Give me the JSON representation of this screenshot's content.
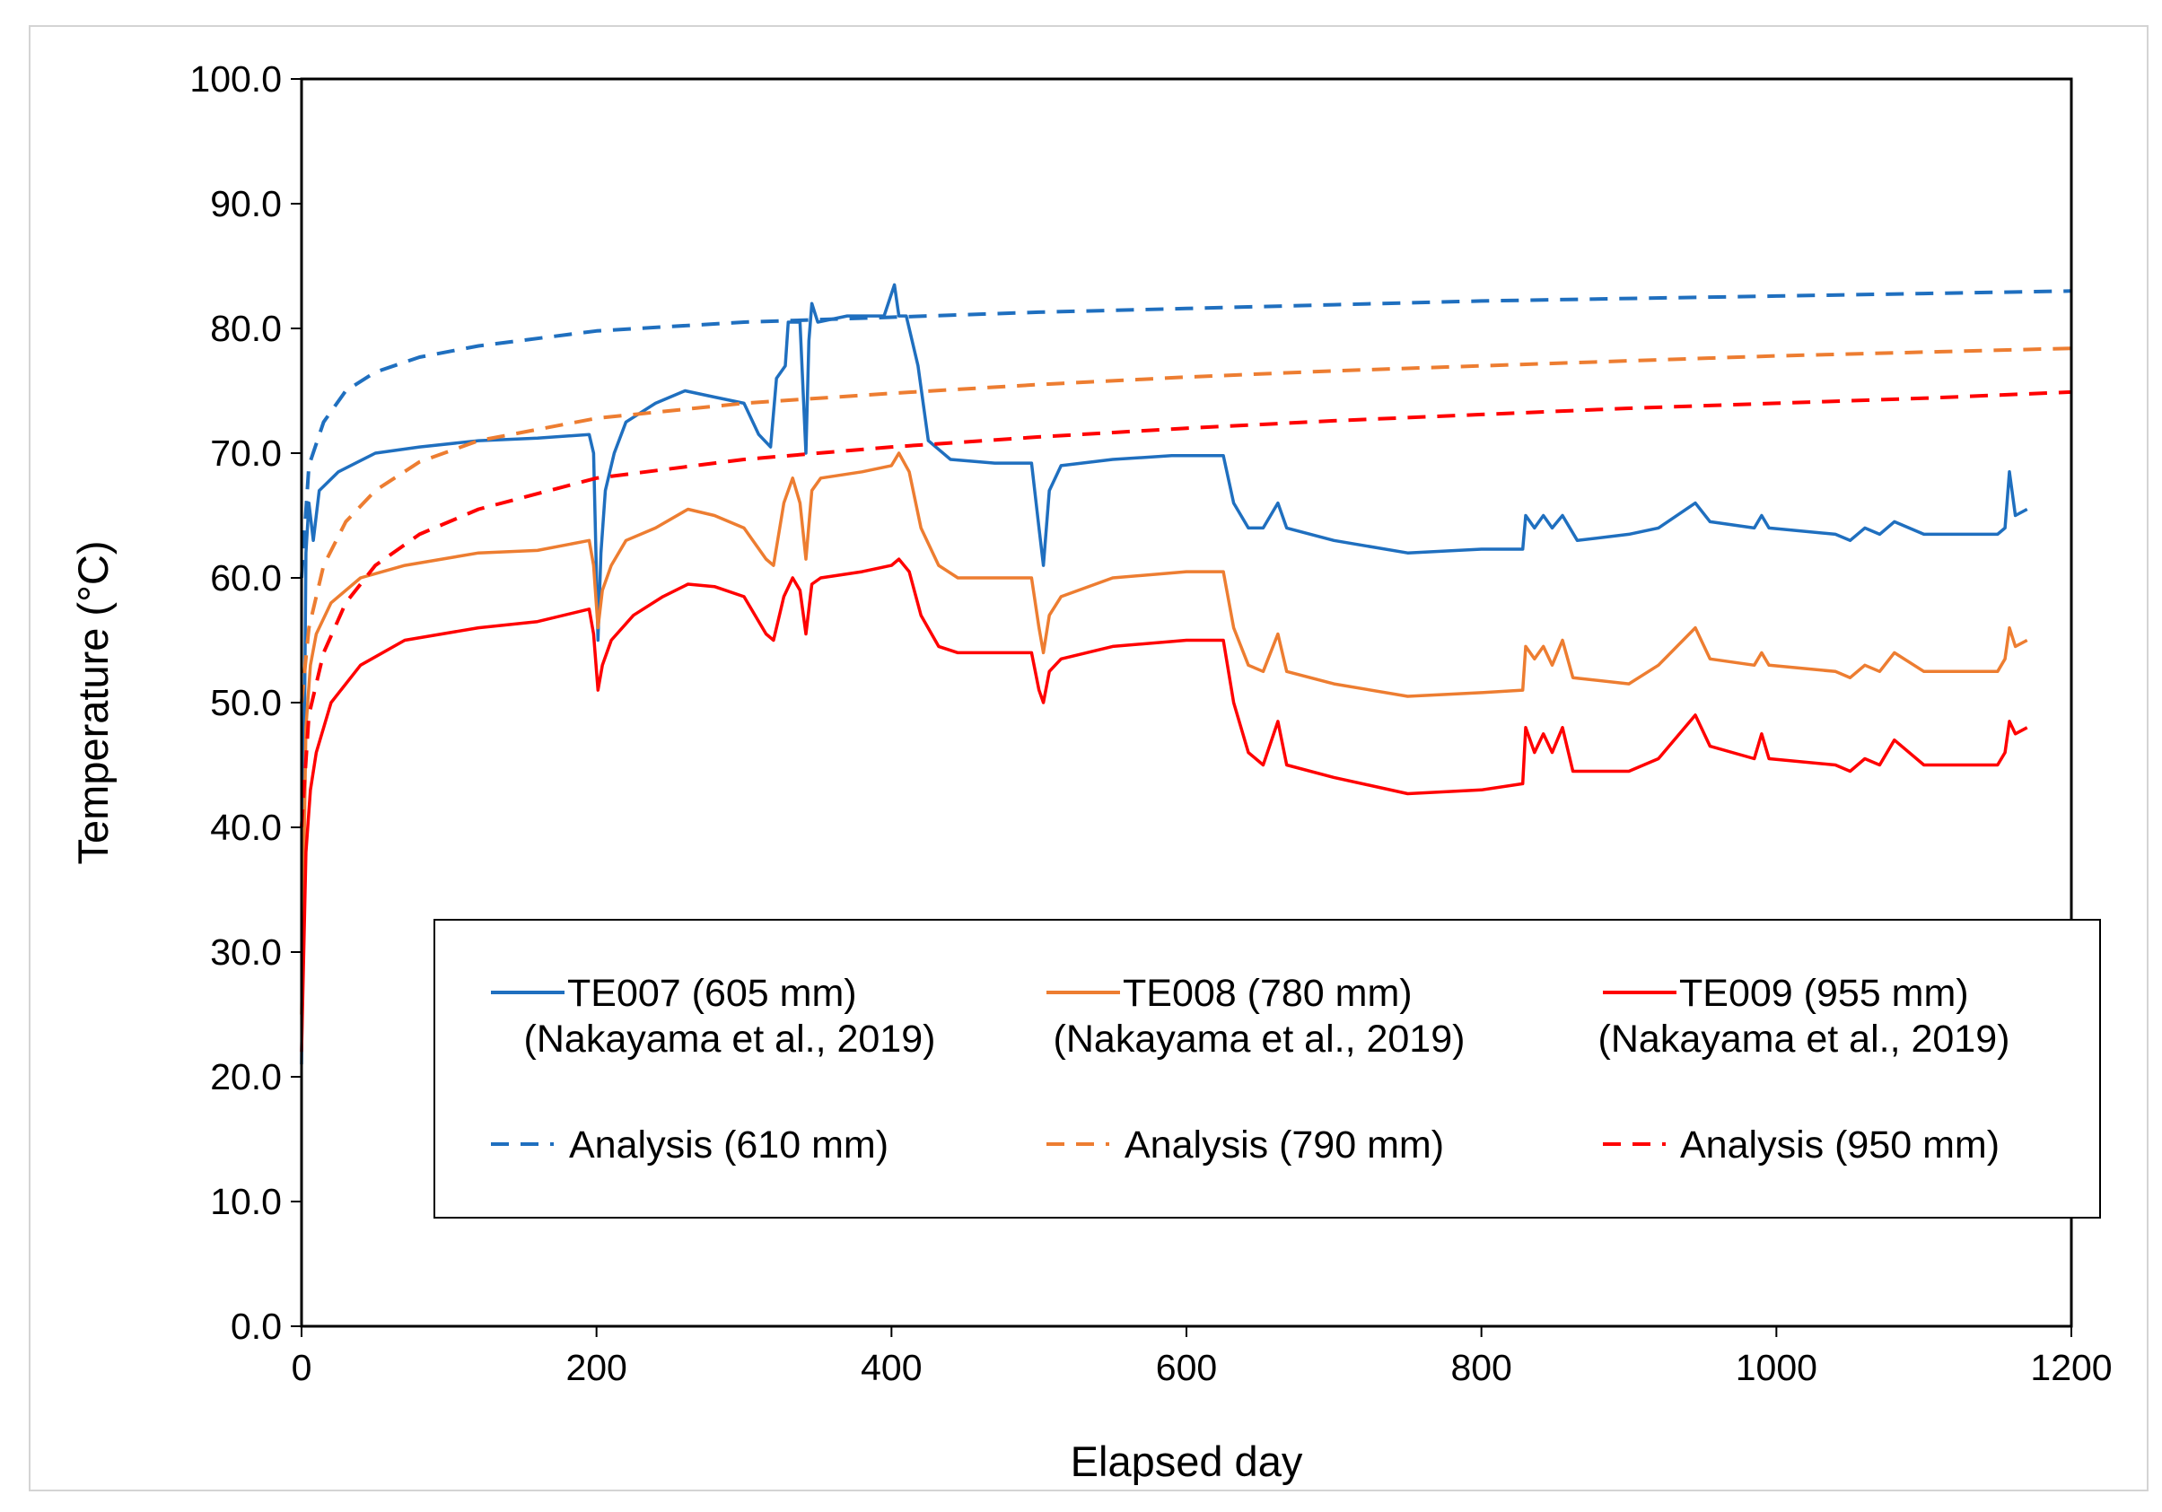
{
  "chart_data": {
    "type": "line",
    "title": "",
    "xlabel": "Elapsed day",
    "ylabel": "Temperature (°C)",
    "xlim": [
      0,
      1200
    ],
    "ylim": [
      0,
      100
    ],
    "x_ticks": [
      "0",
      "200",
      "400",
      "600",
      "800",
      "1000",
      "1200"
    ],
    "y_ticks": [
      "0.0",
      "10.0",
      "20.0",
      "30.0",
      "40.0",
      "50.0",
      "60.0",
      "70.0",
      "80.0",
      "90.0",
      "100.0"
    ],
    "grid": false,
    "legend_position": "lower-center",
    "series": [
      {
        "name": "TE007 (605 mm)",
        "source": "(Nakayama et al., 2019)",
        "color": "#1f6fbf",
        "style": "solid",
        "points": [
          [
            0,
            21
          ],
          [
            3,
            62
          ],
          [
            5,
            66
          ],
          [
            8,
            63
          ],
          [
            12,
            67
          ],
          [
            25,
            68.5
          ],
          [
            50,
            70
          ],
          [
            80,
            70.5
          ],
          [
            120,
            71
          ],
          [
            160,
            71.2
          ],
          [
            195,
            71.5
          ],
          [
            198,
            70
          ],
          [
            201,
            55
          ],
          [
            203,
            62
          ],
          [
            206,
            67
          ],
          [
            212,
            70
          ],
          [
            220,
            72.5
          ],
          [
            240,
            74
          ],
          [
            260,
            75
          ],
          [
            280,
            74.5
          ],
          [
            300,
            74
          ],
          [
            310,
            71.5
          ],
          [
            318,
            70.5
          ],
          [
            322,
            76
          ],
          [
            328,
            77
          ],
          [
            330,
            80.5
          ],
          [
            338,
            80.5
          ],
          [
            342,
            70
          ],
          [
            344,
            79
          ],
          [
            346,
            82
          ],
          [
            350,
            80.5
          ],
          [
            370,
            81
          ],
          [
            395,
            81
          ],
          [
            402,
            83.5
          ],
          [
            405,
            81
          ],
          [
            410,
            81
          ],
          [
            418,
            77
          ],
          [
            425,
            71
          ],
          [
            440,
            69.5
          ],
          [
            470,
            69.2
          ],
          [
            495,
            69.2
          ],
          [
            500,
            64
          ],
          [
            503,
            61
          ],
          [
            507,
            67
          ],
          [
            515,
            69
          ],
          [
            550,
            69.5
          ],
          [
            590,
            69.8
          ],
          [
            625,
            69.8
          ],
          [
            632,
            66
          ],
          [
            642,
            64
          ],
          [
            652,
            64
          ],
          [
            662,
            66
          ],
          [
            668,
            64
          ],
          [
            700,
            63
          ],
          [
            750,
            62
          ],
          [
            800,
            62.3
          ],
          [
            828,
            62.3
          ],
          [
            830,
            65
          ],
          [
            836,
            64
          ],
          [
            842,
            65
          ],
          [
            848,
            64
          ],
          [
            855,
            65
          ],
          [
            865,
            63
          ],
          [
            900,
            63.5
          ],
          [
            920,
            64
          ],
          [
            945,
            66
          ],
          [
            955,
            64.5
          ],
          [
            985,
            64
          ],
          [
            990,
            65
          ],
          [
            995,
            64
          ],
          [
            1040,
            63.5
          ],
          [
            1050,
            63
          ],
          [
            1060,
            64
          ],
          [
            1070,
            63.5
          ],
          [
            1080,
            64.5
          ],
          [
            1100,
            63.5
          ],
          [
            1150,
            63.5
          ],
          [
            1155,
            64
          ],
          [
            1158,
            68.5
          ],
          [
            1162,
            65
          ],
          [
            1170,
            65.5
          ]
        ]
      },
      {
        "name": "TE008 (780 mm)",
        "source": "(Nakayama et al., 2019)",
        "color": "#ed7d31",
        "style": "solid",
        "points": [
          [
            0,
            25
          ],
          [
            3,
            48
          ],
          [
            6,
            53
          ],
          [
            10,
            55.5
          ],
          [
            20,
            58
          ],
          [
            40,
            60
          ],
          [
            70,
            61
          ],
          [
            120,
            62
          ],
          [
            160,
            62.2
          ],
          [
            195,
            63
          ],
          [
            198,
            61
          ],
          [
            201,
            56
          ],
          [
            204,
            59
          ],
          [
            210,
            61
          ],
          [
            220,
            63
          ],
          [
            240,
            64
          ],
          [
            262,
            65.5
          ],
          [
            280,
            65
          ],
          [
            300,
            64
          ],
          [
            315,
            61.5
          ],
          [
            320,
            61
          ],
          [
            327,
            66
          ],
          [
            333,
            68
          ],
          [
            338,
            66
          ],
          [
            342,
            61.5
          ],
          [
            346,
            67
          ],
          [
            352,
            68
          ],
          [
            380,
            68.5
          ],
          [
            400,
            69
          ],
          [
            405,
            70
          ],
          [
            412,
            68.5
          ],
          [
            420,
            64
          ],
          [
            432,
            61
          ],
          [
            445,
            60
          ],
          [
            495,
            60
          ],
          [
            500,
            56
          ],
          [
            503,
            54
          ],
          [
            507,
            57
          ],
          [
            515,
            58.5
          ],
          [
            550,
            60
          ],
          [
            600,
            60.5
          ],
          [
            625,
            60.5
          ],
          [
            632,
            56
          ],
          [
            642,
            53
          ],
          [
            652,
            52.5
          ],
          [
            662,
            55.5
          ],
          [
            668,
            52.5
          ],
          [
            700,
            51.5
          ],
          [
            750,
            50.5
          ],
          [
            800,
            50.8
          ],
          [
            828,
            51
          ],
          [
            830,
            54.5
          ],
          [
            836,
            53.5
          ],
          [
            842,
            54.5
          ],
          [
            848,
            53
          ],
          [
            855,
            55
          ],
          [
            862,
            52
          ],
          [
            900,
            51.5
          ],
          [
            920,
            53
          ],
          [
            945,
            56
          ],
          [
            955,
            53.5
          ],
          [
            985,
            53
          ],
          [
            990,
            54
          ],
          [
            995,
            53
          ],
          [
            1040,
            52.5
          ],
          [
            1050,
            52
          ],
          [
            1060,
            53
          ],
          [
            1070,
            52.5
          ],
          [
            1080,
            54
          ],
          [
            1100,
            52.5
          ],
          [
            1150,
            52.5
          ],
          [
            1155,
            53.5
          ],
          [
            1158,
            56
          ],
          [
            1162,
            54.5
          ],
          [
            1170,
            55
          ]
        ]
      },
      {
        "name": "TE009 (955 mm)",
        "source": "(Nakayama et al., 2019)",
        "color": "#ff0000",
        "style": "solid",
        "points": [
          [
            0,
            22
          ],
          [
            3,
            38
          ],
          [
            6,
            43
          ],
          [
            10,
            46
          ],
          [
            20,
            50
          ],
          [
            40,
            53
          ],
          [
            70,
            55
          ],
          [
            120,
            56
          ],
          [
            160,
            56.5
          ],
          [
            195,
            57.5
          ],
          [
            198,
            55.5
          ],
          [
            201,
            51
          ],
          [
            204,
            53
          ],
          [
            210,
            55
          ],
          [
            225,
            57
          ],
          [
            245,
            58.5
          ],
          [
            262,
            59.5
          ],
          [
            280,
            59.3
          ],
          [
            300,
            58.5
          ],
          [
            315,
            55.5
          ],
          [
            320,
            55
          ],
          [
            327,
            58.5
          ],
          [
            333,
            60
          ],
          [
            338,
            59
          ],
          [
            342,
            55.5
          ],
          [
            346,
            59.5
          ],
          [
            352,
            60
          ],
          [
            380,
            60.5
          ],
          [
            400,
            61
          ],
          [
            405,
            61.5
          ],
          [
            412,
            60.5
          ],
          [
            420,
            57
          ],
          [
            432,
            54.5
          ],
          [
            445,
            54
          ],
          [
            495,
            54
          ],
          [
            500,
            51
          ],
          [
            503,
            50
          ],
          [
            507,
            52.5
          ],
          [
            515,
            53.5
          ],
          [
            550,
            54.5
          ],
          [
            600,
            55
          ],
          [
            625,
            55
          ],
          [
            632,
            50
          ],
          [
            642,
            46
          ],
          [
            652,
            45
          ],
          [
            662,
            48.5
          ],
          [
            668,
            45
          ],
          [
            700,
            44
          ],
          [
            750,
            42.7
          ],
          [
            800,
            43
          ],
          [
            828,
            43.5
          ],
          [
            830,
            48
          ],
          [
            836,
            46
          ],
          [
            842,
            47.5
          ],
          [
            848,
            46
          ],
          [
            855,
            48
          ],
          [
            862,
            44.5
          ],
          [
            900,
            44.5
          ],
          [
            920,
            45.5
          ],
          [
            945,
            49
          ],
          [
            955,
            46.5
          ],
          [
            985,
            45.5
          ],
          [
            990,
            47.5
          ],
          [
            995,
            45.5
          ],
          [
            1040,
            45
          ],
          [
            1050,
            44.5
          ],
          [
            1060,
            45.5
          ],
          [
            1070,
            45
          ],
          [
            1080,
            47
          ],
          [
            1100,
            45
          ],
          [
            1150,
            45
          ],
          [
            1155,
            46
          ],
          [
            1158,
            48.5
          ],
          [
            1162,
            47.5
          ],
          [
            1170,
            48
          ]
        ]
      },
      {
        "name": "Analysis (610 mm)",
        "color": "#1f6fbf",
        "style": "dashed",
        "points": [
          [
            0,
            60
          ],
          [
            5,
            69
          ],
          [
            15,
            72.5
          ],
          [
            30,
            75
          ],
          [
            50,
            76.5
          ],
          [
            80,
            77.7
          ],
          [
            120,
            78.6
          ],
          [
            200,
            79.8
          ],
          [
            300,
            80.5
          ],
          [
            400,
            80.9
          ],
          [
            500,
            81.3
          ],
          [
            600,
            81.6
          ],
          [
            700,
            81.9
          ],
          [
            800,
            82.2
          ],
          [
            900,
            82.4
          ],
          [
            1000,
            82.6
          ],
          [
            1100,
            82.8
          ],
          [
            1200,
            83
          ]
        ]
      },
      {
        "name": "Analysis (790 mm)",
        "color": "#ed7d31",
        "style": "dashed",
        "points": [
          [
            0,
            50
          ],
          [
            5,
            56
          ],
          [
            15,
            61
          ],
          [
            30,
            64.5
          ],
          [
            50,
            67
          ],
          [
            80,
            69.3
          ],
          [
            120,
            71
          ],
          [
            200,
            72.8
          ],
          [
            300,
            74
          ],
          [
            400,
            74.8
          ],
          [
            500,
            75.5
          ],
          [
            600,
            76.1
          ],
          [
            700,
            76.6
          ],
          [
            800,
            77
          ],
          [
            900,
            77.4
          ],
          [
            1000,
            77.8
          ],
          [
            1100,
            78.1
          ],
          [
            1200,
            78.4
          ]
        ]
      },
      {
        "name": "Analysis (950 mm)",
        "color": "#ff0000",
        "style": "dashed",
        "points": [
          [
            0,
            40
          ],
          [
            5,
            49
          ],
          [
            15,
            54
          ],
          [
            30,
            58
          ],
          [
            50,
            61
          ],
          [
            80,
            63.5
          ],
          [
            120,
            65.5
          ],
          [
            200,
            68
          ],
          [
            300,
            69.5
          ],
          [
            400,
            70.5
          ],
          [
            500,
            71.3
          ],
          [
            600,
            72
          ],
          [
            700,
            72.6
          ],
          [
            800,
            73.1
          ],
          [
            900,
            73.6
          ],
          [
            1000,
            74
          ],
          [
            1100,
            74.4
          ],
          [
            1200,
            74.9
          ]
        ]
      }
    ]
  }
}
